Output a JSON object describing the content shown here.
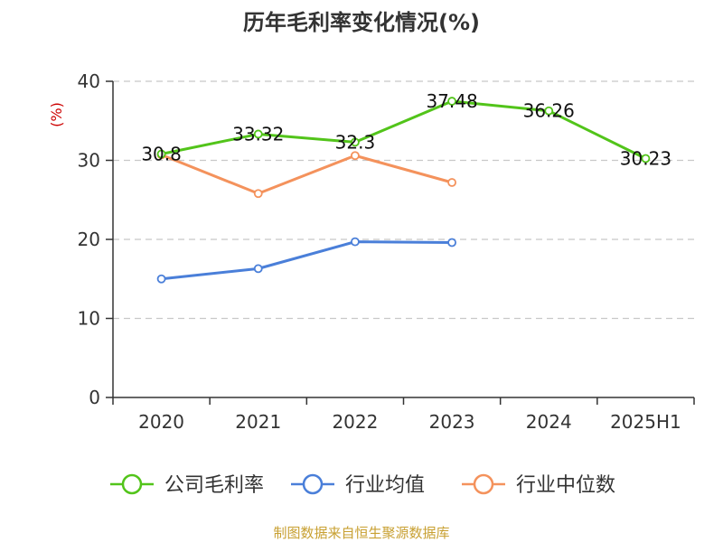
{
  "chart_data": {
    "type": "line",
    "title": "历年毛利率变化情况(%)",
    "ylabel": "(%)",
    "categories": [
      "2020",
      "2021",
      "2022",
      "2023",
      "2024",
      "2025H1"
    ],
    "ylim": [
      0,
      40
    ],
    "yticks": [
      "0",
      "10",
      "20",
      "30",
      "40"
    ],
    "grid": true,
    "legend_position": "bottom",
    "series": [
      {
        "name": "公司毛利率",
        "color": "#52c41a",
        "values": [
          30.8,
          33.32,
          32.3,
          37.48,
          36.26,
          30.23
        ],
        "labels": [
          "30.8",
          "33.32",
          "32.3",
          "37.48",
          "36.26",
          "30.23"
        ]
      },
      {
        "name": "行业均值",
        "color": "#4a7fd9",
        "values": [
          15.0,
          16.3,
          19.7,
          19.6,
          null,
          null
        ]
      },
      {
        "name": "行业中位数",
        "color": "#f4925c",
        "values": [
          30.7,
          25.8,
          30.6,
          27.2,
          null,
          null
        ]
      }
    ],
    "source": "制图数据来自恒生聚源数据库"
  }
}
